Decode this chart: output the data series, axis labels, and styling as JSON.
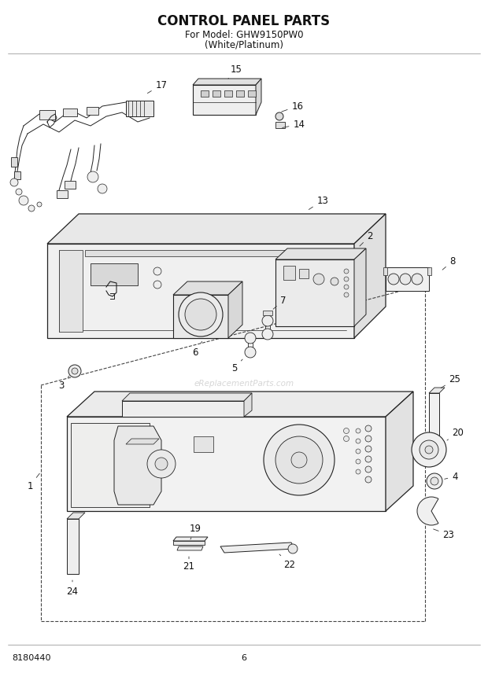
{
  "title": "CONTROL PANEL PARTS",
  "subtitle1": "For Model: GHW9150PW0",
  "subtitle2": "(White/Platinum)",
  "part_number": "8180440",
  "page": "6",
  "bg_color": "#ffffff",
  "title_fontsize": 12,
  "subtitle_fontsize": 8.5,
  "footer_fontsize": 8,
  "watermark": "eReplacementParts.com",
  "lc": "#222222",
  "lw": 0.8
}
